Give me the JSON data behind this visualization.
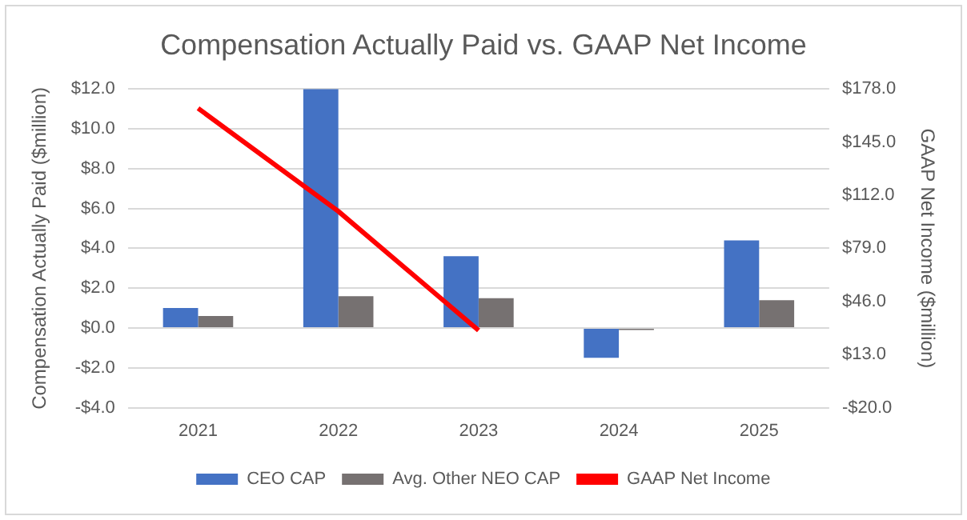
{
  "chart_data": {
    "type": "bar",
    "title": "Compensation Actually Paid vs. GAAP Net Income",
    "ylabel": "Compensation Actually Paid ($million)",
    "y2label": "GAAP Net Income ($million)",
    "categories": [
      "2021",
      "2022",
      "2023",
      "2024",
      "2025"
    ],
    "series": [
      {
        "name": "CEO CAP",
        "color": "#4472c4",
        "values": [
          1.0,
          12.0,
          3.6,
          -1.5,
          4.4
        ]
      },
      {
        "name": "Avg. Other NEO CAP",
        "color": "#767171",
        "values": [
          0.6,
          1.6,
          1.5,
          -0.1,
          1.4
        ]
      },
      {
        "name": "GAAP Net Income",
        "type": "line",
        "axis": "y2",
        "color": "#ff0000",
        "values": [
          166,
          102,
          28,
          null,
          null
        ]
      }
    ],
    "ylim": [
      -4,
      12
    ],
    "yticks": [
      {
        "value": -4,
        "label": "-$4.0"
      },
      {
        "value": -2,
        "label": "-$2.0"
      },
      {
        "value": 0,
        "label": "$0.0"
      },
      {
        "value": 2,
        "label": "$2.0"
      },
      {
        "value": 4,
        "label": "$4.0"
      },
      {
        "value": 6,
        "label": "$6.0"
      },
      {
        "value": 8,
        "label": "$8.0"
      },
      {
        "value": 10,
        "label": "$10.0"
      },
      {
        "value": 12,
        "label": "$12.0"
      }
    ],
    "y2lim": [
      -20,
      178
    ],
    "y2ticks": [
      {
        "value": -20,
        "label": "-$20.0"
      },
      {
        "value": 13,
        "label": "$13.0"
      },
      {
        "value": 46,
        "label": "$46.0"
      },
      {
        "value": 79,
        "label": "$79.0"
      },
      {
        "value": 112,
        "label": "$112.0"
      },
      {
        "value": 145,
        "label": "$145.0"
      },
      {
        "value": 178,
        "label": "$178.0"
      }
    ],
    "grid": "y",
    "legend": "bottom",
    "marker": "none",
    "line_style": "solid"
  }
}
